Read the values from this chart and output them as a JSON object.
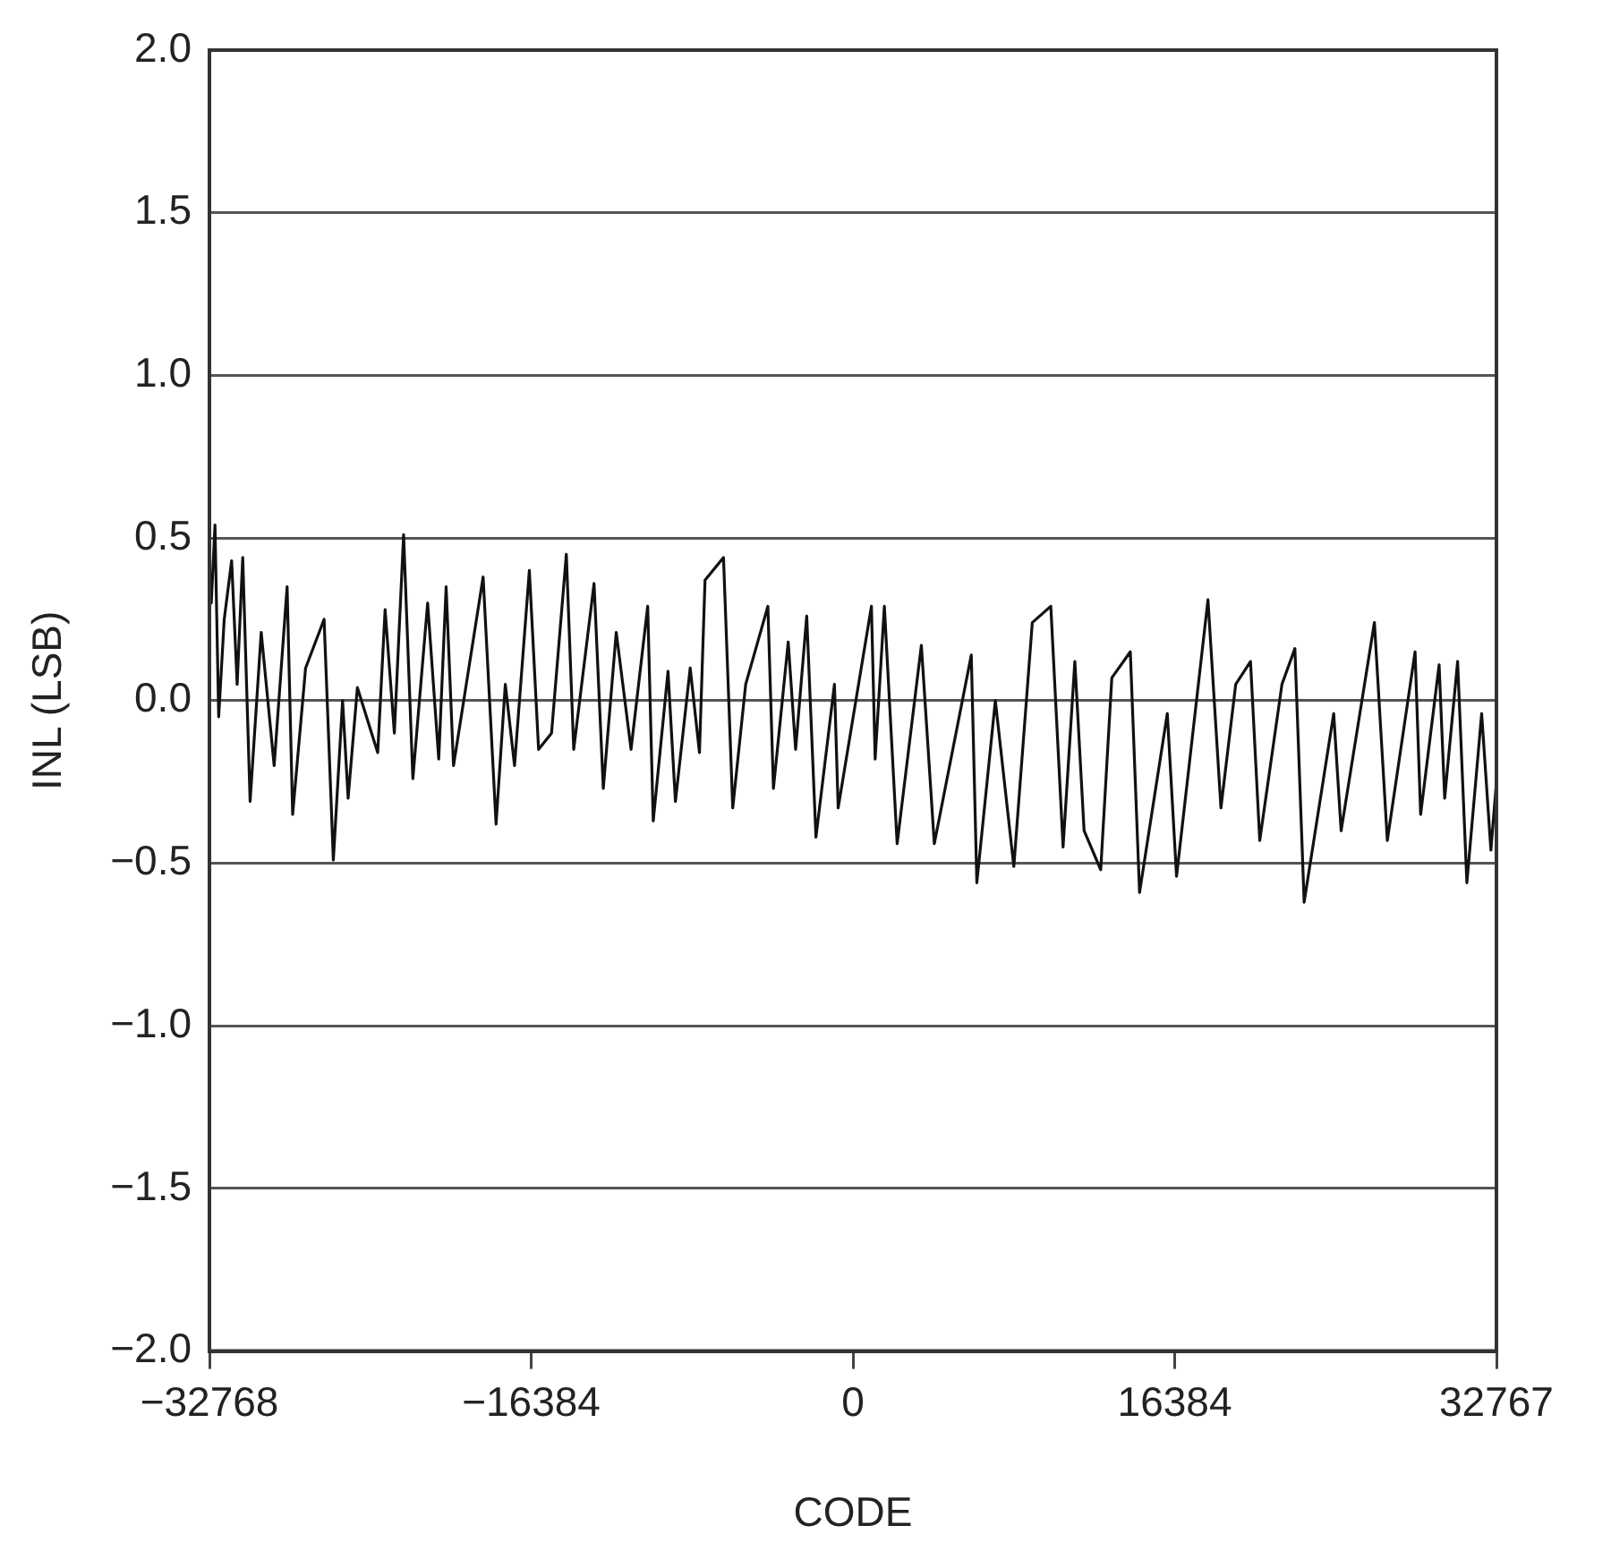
{
  "chart_data": {
    "type": "line",
    "xlabel": "CODE",
    "ylabel": "INL (LSB)",
    "x": [
      -32674,
      -32486,
      -32297,
      -32015,
      -31638,
      -31356,
      -31073,
      -30697,
      -30132,
      -29472,
      -28813,
      -28531,
      -27872,
      -26930,
      -26459,
      -25988,
      -25706,
      -25235,
      -24199,
      -23823,
      -23352,
      -22881,
      -22410,
      -21657,
      -21092,
      -20716,
      -20339,
      -18832,
      -18173,
      -17702,
      -17232,
      -16478,
      -16007,
      -15348,
      -14595,
      -14219,
      -13183,
      -12712,
      -12053,
      -11300,
      -10452,
      -10170,
      -9417,
      -9040,
      -8287,
      -7816,
      -7533,
      -6592,
      -6121,
      -5462,
      -4332,
      -4049,
      -3296,
      -2919,
      -2354,
      -1884,
      -942,
      -753,
      941,
      1130,
      1600,
      2250,
      3484,
      4143,
      6026,
      6308,
      7250,
      8192,
      9133,
      10075,
      10700,
      11299,
      11770,
      12617,
      13182,
      14124,
      14594,
      16007,
      16478,
      18078,
      18738,
      19491,
      20244,
      20715,
      21845,
      22504,
      22975,
      24481,
      24858,
      26553,
      27212,
      28624,
      28907,
      29848,
      30131,
      30790,
      31261,
      32014,
      32485,
      32767
    ],
    "series": [
      {
        "color": "#111111",
        "values": [
          0.3,
          0.54,
          -0.05,
          0.25,
          0.43,
          0.05,
          0.44,
          -0.31,
          0.21,
          -0.2,
          0.35,
          -0.35,
          0.1,
          0.25,
          -0.49,
          0.0,
          -0.3,
          0.04,
          -0.16,
          0.28,
          -0.1,
          0.51,
          -0.24,
          0.3,
          -0.18,
          0.35,
          -0.2,
          0.38,
          -0.38,
          0.05,
          -0.2,
          0.4,
          -0.15,
          -0.1,
          0.45,
          -0.15,
          0.36,
          -0.27,
          0.21,
          -0.15,
          0.29,
          -0.37,
          0.09,
          -0.31,
          0.1,
          -0.16,
          0.37,
          0.44,
          -0.33,
          0.05,
          0.29,
          -0.27,
          0.18,
          -0.15,
          0.26,
          -0.42,
          0.05,
          -0.33,
          0.29,
          -0.18,
          0.29,
          -0.44,
          0.17,
          -0.44,
          0.14,
          -0.56,
          0.0,
          -0.51,
          0.24,
          0.29,
          -0.45,
          0.12,
          -0.4,
          -0.52,
          0.07,
          0.15,
          -0.59,
          -0.04,
          -0.54,
          0.31,
          -0.33,
          0.05,
          0.12,
          -0.43,
          0.05,
          0.16,
          -0.62,
          -0.04,
          -0.4,
          0.24,
          -0.43,
          0.15,
          -0.35,
          0.11,
          -0.3,
          0.12,
          -0.56,
          -0.04,
          -0.46,
          -0.25
        ]
      }
    ],
    "xlim": [
      -32768,
      32767
    ],
    "xticks": [
      {
        "value": -32768,
        "label": "−32768"
      },
      {
        "value": -16384,
        "label": "−16384"
      },
      0,
      16384,
      32767
    ],
    "ylim": [
      -2,
      2
    ],
    "yticks": [
      {
        "value": -2,
        "label": "−2.0"
      },
      {
        "value": -1.5,
        "label": "−1.5"
      },
      {
        "value": -1,
        "label": "−1.0"
      },
      {
        "value": -0.5,
        "label": "−0.5"
      },
      {
        "value": 0,
        "label": "0.0"
      },
      {
        "value": 0.5,
        "label": "0.5"
      },
      {
        "value": 1,
        "label": "1.0"
      },
      {
        "value": 1.5,
        "label": "1.5"
      },
      {
        "value": 2,
        "label": "2.0"
      }
    ],
    "grid": "y",
    "legend": false,
    "marker": "none",
    "line_style": "solid"
  }
}
